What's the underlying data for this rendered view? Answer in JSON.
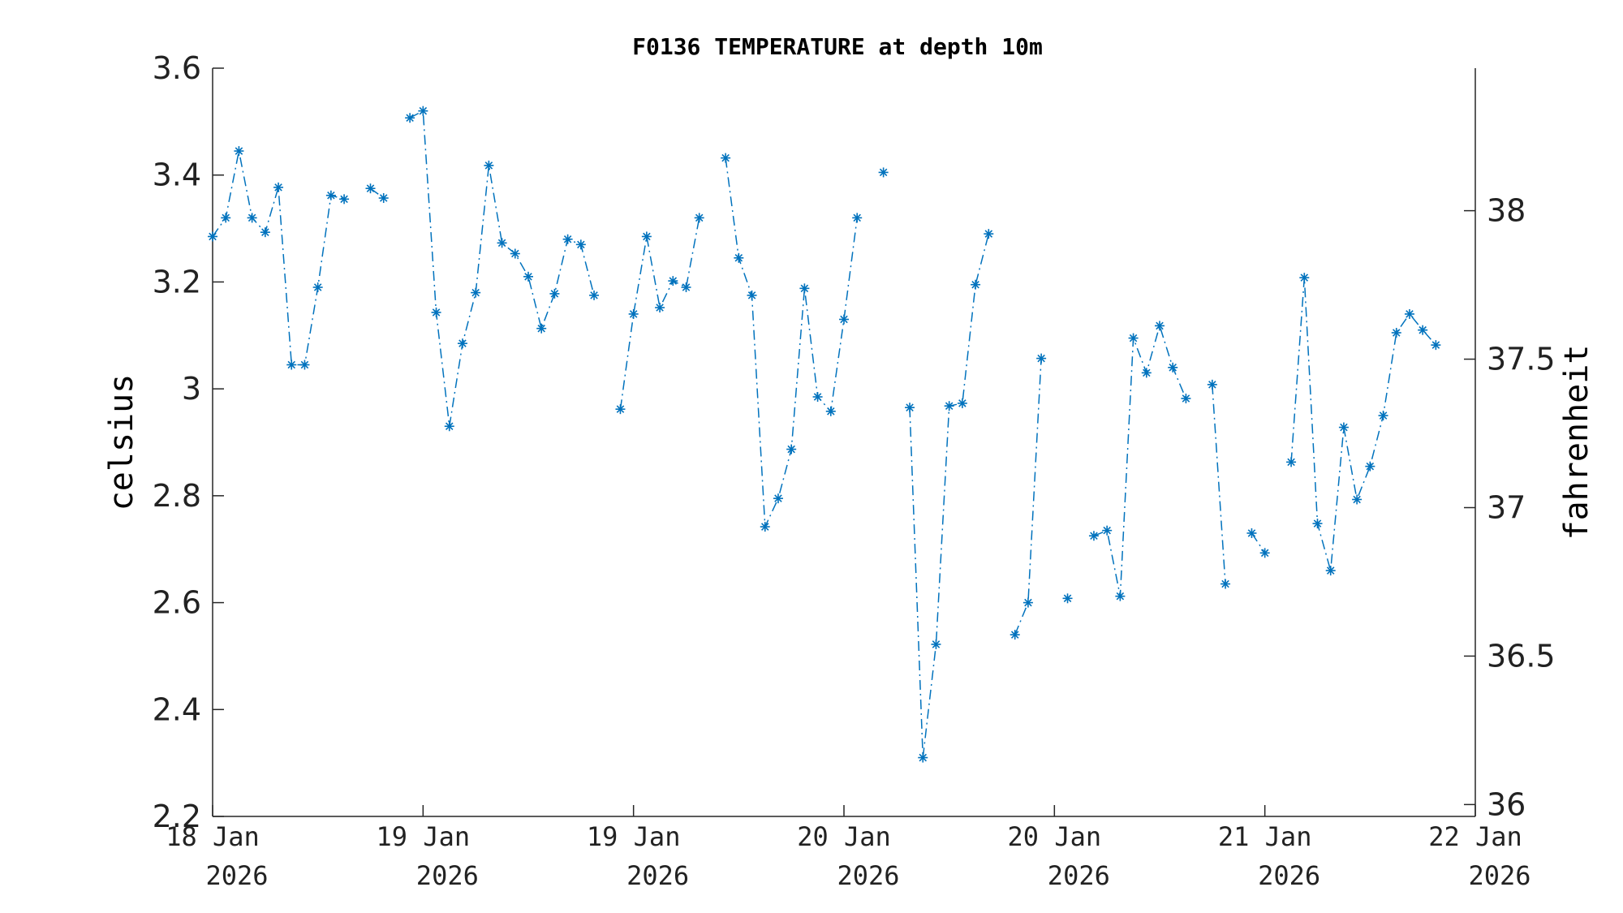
{
  "chart_data": {
    "type": "line",
    "title": "F0136 TEMPERATURE at depth 10m",
    "ylabel": "celsius",
    "y2label": "fahrenheit",
    "ylim": [
      2.2,
      3.6
    ],
    "y2lim": [
      35.96,
      38.48
    ],
    "yticks": [
      "2.2",
      "2.4",
      "2.6",
      "2.8",
      "3",
      "3.2",
      "3.4",
      "3.6"
    ],
    "y2ticks": [
      "36",
      "36.5",
      "37",
      "37.5",
      "38"
    ],
    "xlim_hours": [
      0,
      96
    ],
    "xticks": [
      {
        "line1": "18 Jan",
        "line2": "2026"
      },
      {
        "line1": "19 Jan",
        "line2": "2026"
      },
      {
        "line1": "19 Jan",
        "line2": "2026"
      },
      {
        "line1": "20 Jan",
        "line2": "2026"
      },
      {
        "line1": "20 Jan",
        "line2": "2026"
      },
      {
        "line1": "21 Jan",
        "line2": "2026"
      },
      {
        "line1": "22 Jan",
        "line2": "2026"
      }
    ],
    "grid": false,
    "legend": "none",
    "series_color": "#0072BD",
    "marker": "asterisk",
    "line_style": "dash-dot",
    "points": [
      [
        0,
        3.285
      ],
      [
        1,
        3.32
      ],
      [
        2,
        3.445
      ],
      [
        3,
        3.32
      ],
      [
        4,
        3.293
      ],
      [
        5,
        3.377
      ],
      [
        6,
        3.045
      ],
      [
        7,
        3.045
      ],
      [
        8,
        3.19
      ],
      [
        9,
        3.362
      ],
      [
        10,
        3.355
      ],
      null,
      [
        12,
        3.375
      ],
      [
        13,
        3.357
      ],
      null,
      [
        15,
        3.507
      ],
      [
        16,
        3.52
      ],
      [
        17,
        3.143
      ],
      [
        18,
        2.93
      ],
      [
        19,
        3.085
      ],
      [
        20,
        3.18
      ],
      [
        21,
        3.418
      ],
      [
        22,
        3.273
      ],
      [
        23,
        3.253
      ],
      [
        24,
        3.21
      ],
      [
        25,
        3.113
      ],
      [
        26,
        3.178
      ],
      [
        27,
        3.28
      ],
      [
        28,
        3.27
      ],
      [
        29,
        3.175
      ],
      null,
      [
        31,
        2.962
      ],
      [
        32,
        3.14
      ],
      [
        33,
        3.285
      ],
      [
        34,
        3.152
      ],
      [
        35,
        3.202
      ],
      [
        36,
        3.19
      ],
      [
        37,
        3.32
      ],
      null,
      [
        39,
        3.432
      ],
      [
        40,
        3.245
      ],
      [
        41,
        3.175
      ],
      [
        42,
        2.742
      ],
      [
        43,
        2.795
      ],
      [
        44,
        2.887
      ],
      [
        45,
        3.188
      ],
      [
        46,
        2.985
      ],
      [
        47,
        2.958
      ],
      [
        48,
        3.13
      ],
      [
        49,
        3.32
      ],
      null,
      [
        51,
        3.405
      ],
      null,
      [
        53,
        2.965
      ],
      [
        54,
        2.31
      ],
      [
        55,
        2.522
      ],
      [
        56,
        2.968
      ],
      [
        57,
        2.973
      ],
      [
        58,
        3.195
      ],
      [
        59,
        3.29
      ],
      null,
      [
        61,
        2.54
      ],
      [
        62,
        2.6
      ],
      [
        63,
        3.057
      ],
      null,
      [
        65,
        2.608
      ],
      null,
      [
        67,
        2.725
      ],
      [
        68,
        2.735
      ],
      [
        69,
        2.612
      ],
      [
        70,
        3.095
      ],
      [
        71,
        3.03
      ],
      [
        72,
        3.118
      ],
      [
        73,
        3.04
      ],
      [
        74,
        2.982
      ],
      null,
      [
        76,
        3.008
      ],
      [
        77,
        2.635
      ],
      null,
      [
        79,
        2.73
      ],
      [
        80,
        2.693
      ],
      null,
      [
        82,
        2.863
      ],
      [
        83,
        3.208
      ],
      [
        84,
        2.748
      ],
      [
        85,
        2.66
      ],
      [
        86,
        2.928
      ],
      [
        87,
        2.793
      ],
      [
        88,
        2.855
      ],
      [
        89,
        2.95
      ],
      [
        90,
        3.105
      ],
      [
        91,
        3.14
      ],
      [
        92,
        3.11
      ],
      [
        93,
        3.082
      ]
    ]
  }
}
